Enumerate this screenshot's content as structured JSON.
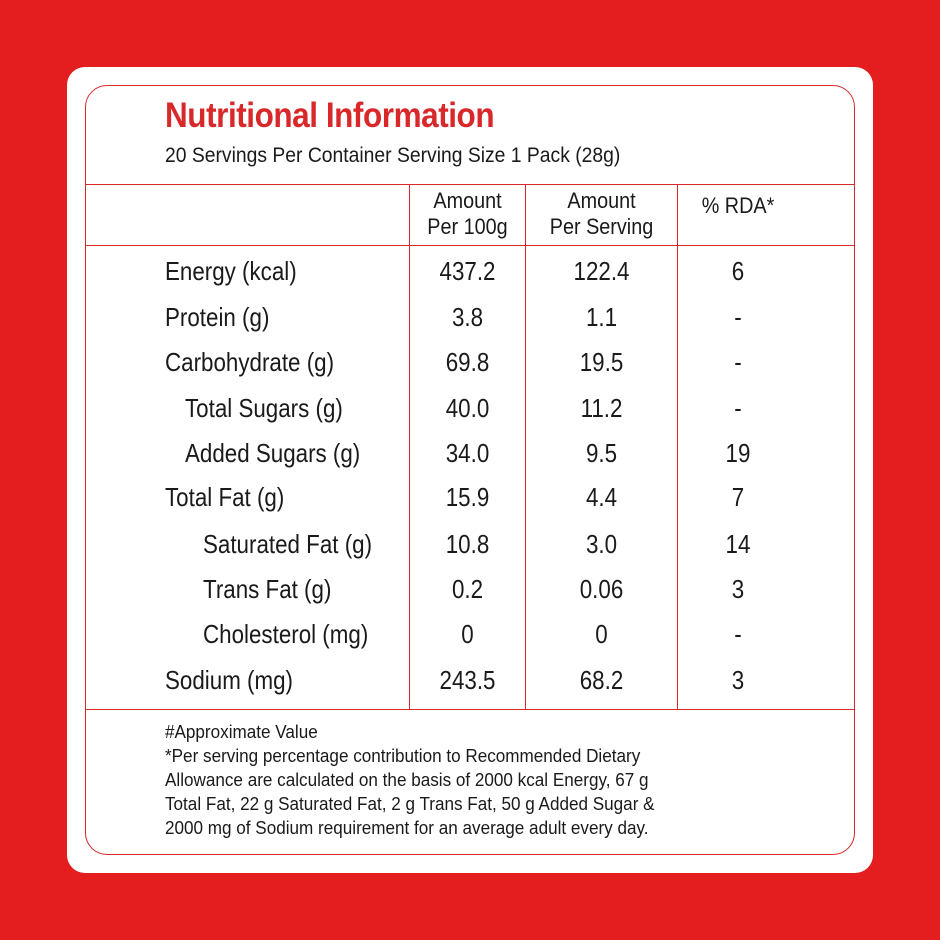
{
  "title": "Nutritional Information",
  "subtitle": "20 Servings Per Container Serving Size 1 Pack (28g)",
  "columns": {
    "per100": [
      "Amount",
      "Per 100g"
    ],
    "perServing": [
      "Amount",
      "Per Serving"
    ],
    "rda": "% RDA*"
  },
  "rows": [
    {
      "label": "Energy (kcal)",
      "per100": "437.2",
      "perServing": "122.4",
      "rda": "6"
    },
    {
      "label": "Protein (g)",
      "per100": "3.8",
      "perServing": "1.1",
      "rda": "-"
    },
    {
      "label": "Carbohydrate (g)",
      "per100": "69.8",
      "perServing": "19.5",
      "rda": "-"
    },
    {
      "label": "Total Sugars (g)",
      "per100": "40.0",
      "perServing": "11.2",
      "rda": "-"
    },
    {
      "label": "Added Sugars (g)",
      "per100": "34.0",
      "perServing": "9.5",
      "rda": "19"
    },
    {
      "label": "Total Fat (g)",
      "per100": "15.9",
      "perServing": "4.4",
      "rda": "7"
    },
    {
      "label": "Saturated Fat (g)",
      "per100": "10.8",
      "perServing": "3.0",
      "rda": "14"
    },
    {
      "label": "Trans Fat (g)",
      "per100": "0.2",
      "perServing": "0.06",
      "rda": "3"
    },
    {
      "label": "Cholesterol (mg)",
      "per100": "0",
      "perServing": "0",
      "rda": "-"
    },
    {
      "label": "Sodium (mg)",
      "per100": "243.5",
      "perServing": "68.2",
      "rda": "3"
    }
  ],
  "footnotes": [
    "#Approximate Value",
    "*Per serving percentage contribution to Recommended Dietary",
    "Allowance are calculated on the basis of 2000 kcal Energy, 67 g",
    "Total Fat, 22 g Saturated Fat, 2 g Trans Fat, 50 g Added Sugar &",
    "2000 mg of Sodium requirement for an average adult every day."
  ],
  "colors": {
    "background": "#e41e1f",
    "accent": "#d8282a",
    "card": "#ffffff",
    "text": "#1a1a1a"
  }
}
